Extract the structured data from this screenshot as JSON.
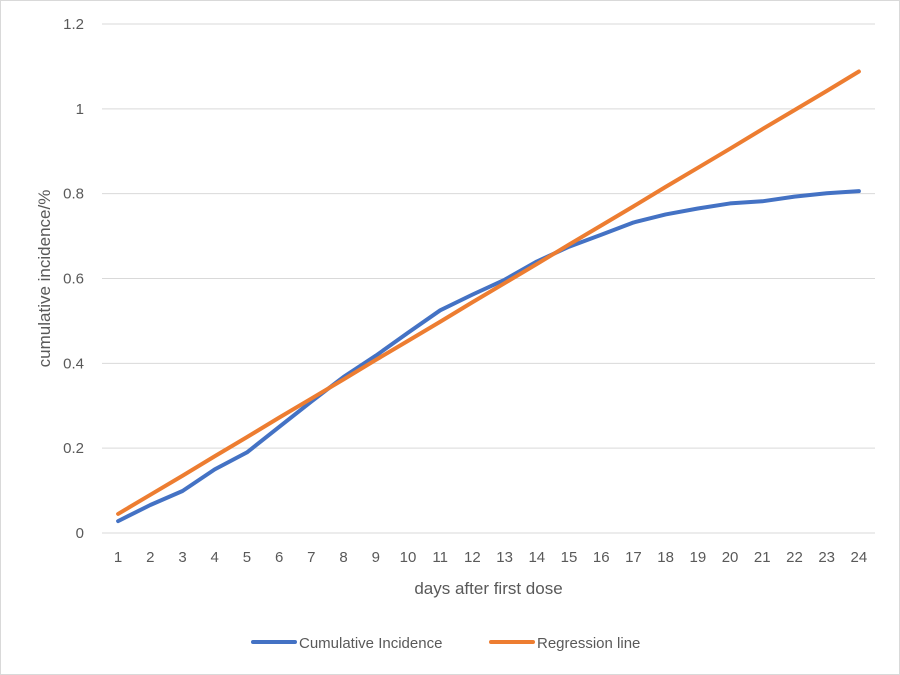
{
  "chart_data": {
    "type": "line",
    "title": "",
    "xlabel": "days after first dose",
    "ylabel": "cumulative incidence/%",
    "categories": [
      "1",
      "2",
      "3",
      "4",
      "5",
      "6",
      "7",
      "8",
      "9",
      "10",
      "11",
      "12",
      "13",
      "14",
      "15",
      "16",
      "17",
      "18",
      "19",
      "20",
      "21",
      "22",
      "23",
      "24"
    ],
    "ylim": [
      0,
      1.2
    ],
    "yticks": [
      "0",
      "0.2",
      "0.4",
      "0.6",
      "0.8",
      "1",
      "1.2"
    ],
    "grid": "horizontal",
    "legend_position": "bottom",
    "series": [
      {
        "name": "Cumulative Incidence",
        "color": "#4472C4",
        "values": [
          0.028,
          0.066,
          0.099,
          0.15,
          0.19,
          0.25,
          0.31,
          0.368,
          0.418,
          0.472,
          0.525,
          0.562,
          0.597,
          0.64,
          0.675,
          0.703,
          0.732,
          0.751,
          0.765,
          0.777,
          0.782,
          0.793,
          0.801,
          0.806
        ]
      },
      {
        "name": "Regression line",
        "color": "#ED7D31",
        "values": [
          0.045,
          0.09,
          0.135,
          0.181,
          0.226,
          0.272,
          0.317,
          0.362,
          0.408,
          0.453,
          0.498,
          0.544,
          0.589,
          0.634,
          0.68,
          0.725,
          0.77,
          0.816,
          0.861,
          0.906,
          0.952,
          0.997,
          1.042,
          1.088
        ]
      }
    ]
  }
}
